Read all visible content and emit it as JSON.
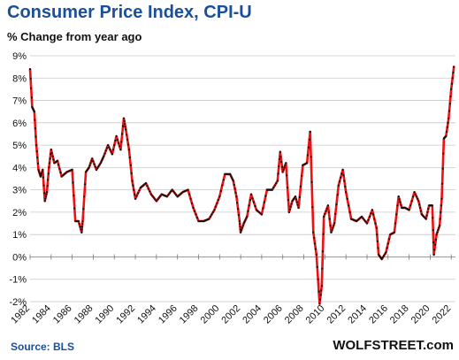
{
  "header": {
    "title": "Consumer Price Index, CPI-U",
    "subtitle": "% Change from year ago"
  },
  "footer": {
    "source": "Source: BLS",
    "brand": "WOLFSTREET.com"
  },
  "colors": {
    "line": "#ee1111",
    "marker": "#111111",
    "title": "#1a4f9c",
    "grid": "#c8c8c8"
  },
  "chart_data": {
    "type": "line",
    "title": "Consumer Price Index, CPI-U",
    "subtitle": "% Change from year ago",
    "xlabel": "",
    "ylabel": "",
    "ylim": [
      -2,
      9
    ],
    "xlim": [
      1982,
      2022.4
    ],
    "y_ticks": [
      "9%",
      "8%",
      "7%",
      "6%",
      "5%",
      "4%",
      "3%",
      "2%",
      "1%",
      "0%",
      "-1%",
      "-2%"
    ],
    "y_tick_values": [
      9,
      8,
      7,
      6,
      5,
      4,
      3,
      2,
      1,
      0,
      -1,
      -2
    ],
    "x_ticks": [
      "1982",
      "1984",
      "1986",
      "1988",
      "1990",
      "1992",
      "1994",
      "1996",
      "1998",
      "2000",
      "2002",
      "2004",
      "2006",
      "2008",
      "2010",
      "2012",
      "2014",
      "2016",
      "2018",
      "2020",
      "2022"
    ],
    "x_tick_values": [
      1982,
      1984,
      1986,
      1988,
      1990,
      1992,
      1994,
      1996,
      1998,
      2000,
      2002,
      2004,
      2006,
      2008,
      2010,
      2012,
      2014,
      2016,
      2018,
      2020,
      2022
    ],
    "grid": true,
    "legend": "none",
    "series": [
      {
        "x": [
          1982.0,
          1982.2,
          1982.4,
          1982.6,
          1982.8,
          1983.0,
          1983.2,
          1983.4,
          1983.6,
          1983.8,
          1984.0,
          1984.3,
          1984.6,
          1985.0,
          1985.5,
          1986.0,
          1986.3,
          1986.6,
          1986.9,
          1987.0,
          1987.3,
          1987.6,
          1987.9,
          1988.3,
          1988.7,
          1989.0,
          1989.4,
          1989.8,
          1990.2,
          1990.6,
          1990.9,
          1991.1,
          1991.4,
          1991.7,
          1992.0,
          1992.5,
          1993.0,
          1993.5,
          1994.0,
          1994.5,
          1995.0,
          1995.5,
          1996.0,
          1996.5,
          1997.0,
          1997.5,
          1998.0,
          1998.5,
          1999.0,
          1999.5,
          2000.0,
          2000.5,
          2001.0,
          2001.3,
          2001.6,
          2001.9,
          2002.0,
          2002.3,
          2002.6,
          2003.0,
          2003.5,
          2004.0,
          2004.5,
          2005.0,
          2005.5,
          2005.75,
          2006.0,
          2006.3,
          2006.6,
          2006.9,
          2007.2,
          2007.5,
          2007.9,
          2008.3,
          2008.6,
          2008.9,
          2009.2,
          2009.5,
          2009.7,
          2009.9,
          2010.3,
          2010.6,
          2010.9,
          2011.3,
          2011.7,
          2012.0,
          2012.5,
          2013.0,
          2013.5,
          2014.0,
          2014.5,
          2014.9,
          2015.1,
          2015.4,
          2015.8,
          2016.2,
          2016.6,
          2017.0,
          2017.3,
          2017.6,
          2018.0,
          2018.5,
          2018.9,
          2019.2,
          2019.6,
          2019.9,
          2020.2,
          2020.35,
          2020.6,
          2020.9,
          2021.1,
          2021.3,
          2021.5,
          2021.75,
          2022.0,
          2022.25
        ],
        "values": [
          8.4,
          6.7,
          6.5,
          5.0,
          3.9,
          3.6,
          3.9,
          2.5,
          2.9,
          4.0,
          4.8,
          4.2,
          4.3,
          3.6,
          3.8,
          3.9,
          1.6,
          1.6,
          1.1,
          1.6,
          3.8,
          4.0,
          4.4,
          3.9,
          4.2,
          4.5,
          5.0,
          4.6,
          5.4,
          4.8,
          6.2,
          5.7,
          4.8,
          3.4,
          2.6,
          3.1,
          3.3,
          2.8,
          2.5,
          2.8,
          2.7,
          3.0,
          2.7,
          2.9,
          3.0,
          2.2,
          1.6,
          1.6,
          1.7,
          2.1,
          2.7,
          3.7,
          3.7,
          3.4,
          2.7,
          1.6,
          1.1,
          1.5,
          1.8,
          2.8,
          2.1,
          1.9,
          3.0,
          3.0,
          3.4,
          4.7,
          3.8,
          4.2,
          2.0,
          2.5,
          2.7,
          2.2,
          4.1,
          4.2,
          5.6,
          1.1,
          0.1,
          -2.1,
          -1.3,
          1.8,
          2.3,
          1.1,
          1.5,
          3.2,
          3.9,
          2.9,
          1.7,
          1.6,
          1.8,
          1.5,
          2.1,
          1.3,
          0.1,
          -0.1,
          0.2,
          1.0,
          1.1,
          2.7,
          2.2,
          2.2,
          2.1,
          2.9,
          2.5,
          1.9,
          1.7,
          2.3,
          2.3,
          0.1,
          1.0,
          1.4,
          2.6,
          5.3,
          5.4,
          6.2,
          7.5,
          8.5
        ]
      }
    ]
  }
}
